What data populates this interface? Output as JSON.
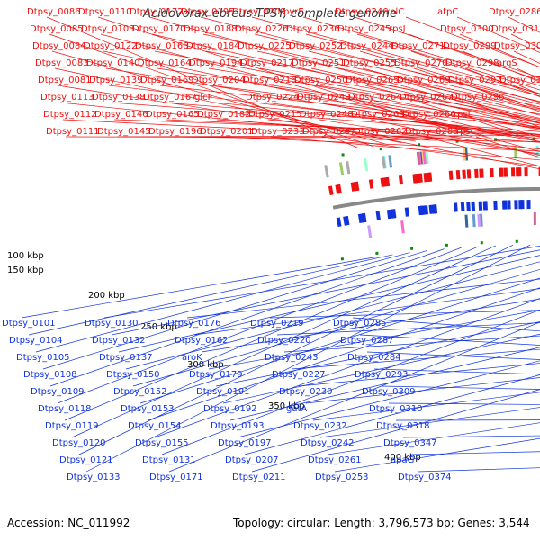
{
  "title": "Acidovorax ebreus TPSY, complete genome",
  "accession": "Accession: NC_011992",
  "summary": "Topology: circular; Length: 3,796,573 bp; Genes: 3,544",
  "colors": {
    "forward": "#ee1111",
    "reverse": "#1133dd",
    "backbone": "#888888",
    "tick": "#118811"
  },
  "scale_labels": [
    "100 kbp",
    "150 kbp",
    "200 kbp",
    "250 kbp",
    "300 kbp",
    "350 kbp",
    "400 kbp"
  ],
  "forward_labels": [
    "Dtpsy_0086",
    "Dtpsy_0085",
    "Dtpsy_0084",
    "Dtpsy_0083",
    "Dtpsy_0081",
    "Dtpsy_0113",
    "Dtpsy_0112",
    "Dtpsy_0111",
    "Dtpsy_0110",
    "Dtpsy_0103",
    "Dtpsy_0122",
    "Dtpsy_0140",
    "Dtpsy_0139",
    "Dtpsy_0138",
    "Dtpsy_0146",
    "Dtpsy_0145",
    "Dtpsy_0172",
    "Dtpsy_0170",
    "Dtpsy_0166",
    "Dtpsy_0164",
    "Dtpsy_0169",
    "Dtpsy_0167",
    "Dtpsy_0165",
    "Dtpsy_0196",
    "Dtpsy_0195",
    "Dtpsy_0188",
    "Dtpsy_0184",
    "Dtpsy_0194",
    "Dtpsy_0204",
    "glcF",
    "Dtpsy_0182",
    "Dtpsy_0201",
    "Dtpsy_0209",
    "Dtpsy_0226",
    "Dtpsy_0225",
    "Dtpsy_0217",
    "Dtpsy_0216",
    "Dtpsy_0224",
    "Dtpsy_0215",
    "Dtpsy_0233",
    "pyrE",
    "Dtpsy_0236",
    "Dtpsy_0252",
    "Dtpsy_0251",
    "Dtpsy_0250",
    "Dtpsy_0249",
    "Dtpsy_0248",
    "Dtpsy_0247",
    "Dtpsy_0246",
    "Dtpsy_0245",
    "Dtpsy_0244",
    "Dtpsy_0255",
    "Dtpsy_0265",
    "Dtpsy_0264",
    "Dtpsy_0263",
    "Dtpsy_0262",
    "rplC",
    "rpsJ",
    "Dtpsy_0271",
    "Dtpsy_0270",
    "Dtpsy_0269",
    "Dtpsy_0267",
    "Dtpsy_0266",
    "Dtpsy_0283",
    "atpC",
    "Dtpsy_0300",
    "Dtpsy_0299",
    "Dtpsy_0298",
    "Dtpsy_0297",
    "Dtpsy_0296",
    "rpsL",
    "rpsC",
    "Dtpsy_0286",
    "Dtpsy_0312",
    "Dtpsy_0303",
    "argS",
    "Dtpsy_0314"
  ],
  "reverse_labels": [
    "Dtpsy_0101",
    "Dtpsy_0104",
    "Dtpsy_0105",
    "Dtpsy_0108",
    "Dtpsy_0109",
    "Dtpsy_0118",
    "Dtpsy_0119",
    "Dtpsy_0120",
    "Dtpsy_0121",
    "Dtpsy_0133",
    "Dtpsy_0130",
    "Dtpsy_0132",
    "Dtpsy_0137",
    "Dtpsy_0150",
    "Dtpsy_0152",
    "Dtpsy_0153",
    "Dtpsy_0154",
    "Dtpsy_0155",
    "Dtpsy_0131",
    "Dtpsy_0171",
    "Dtpsy_0176",
    "Dtpsy_0162",
    "aroK",
    "Dtpsy_0179",
    "Dtpsy_0191",
    "Dtpsy_0192",
    "Dtpsy_0193",
    "Dtpsy_0197",
    "Dtpsy_0207",
    "Dtpsy_0211",
    "Dtpsy_0219",
    "Dtpsy_0220",
    "Dtpsy_0243",
    "Dtpsy_0227",
    "Dtpsy_0230",
    "gatA",
    "Dtpsy_0232",
    "Dtpsy_0242",
    "Dtpsy_0261",
    "Dtpsy_0253",
    "Dtpsy_0285",
    "Dtpsy_0287",
    "Dtpsy_0284",
    "Dtpsy_0293",
    "Dtpsy_0309",
    "Dtpsy_0310",
    "Dtpsy_0318",
    "Dtpsy_0347",
    "apaG",
    "Dtpsy_0374"
  ]
}
